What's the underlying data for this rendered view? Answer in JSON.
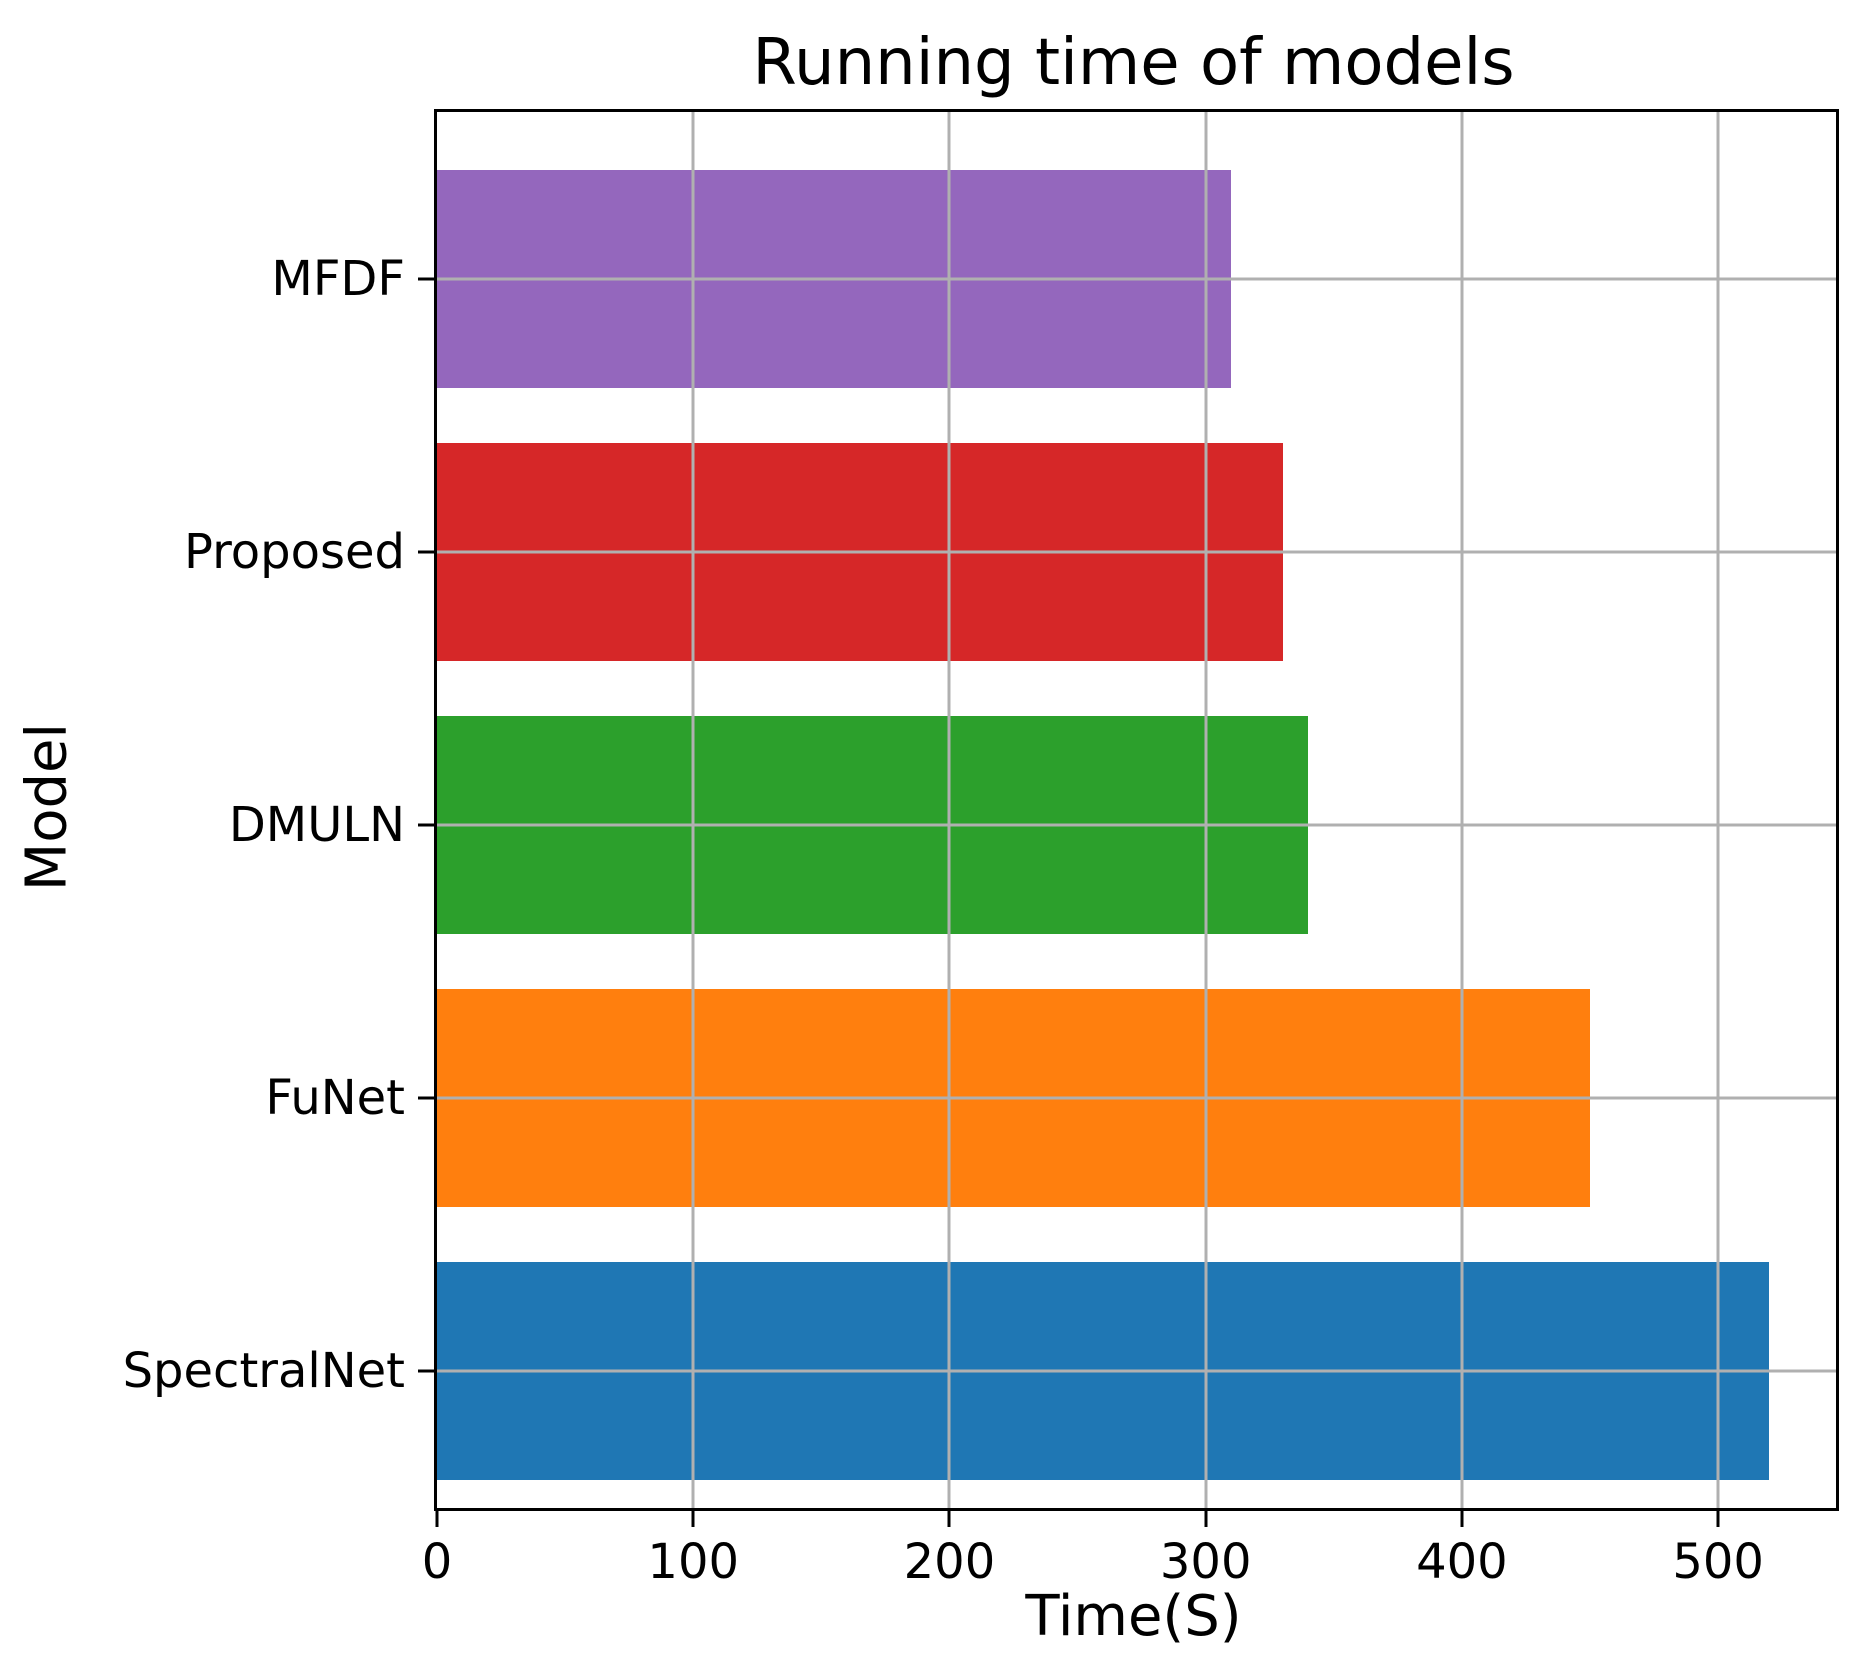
{
  "chart_data": {
    "type": "bar",
    "orientation": "horizontal",
    "title": "Running time of models",
    "xlabel": "Time(S)",
    "ylabel": "Model",
    "categories": [
      "MFDF",
      "Proposed",
      "DMULN",
      "FuNet",
      "SpectralNet"
    ],
    "values": [
      310,
      330,
      340,
      450,
      520
    ],
    "series": [
      {
        "name": "Running time",
        "values": [
          310,
          330,
          340,
          450,
          520
        ]
      }
    ],
    "bar_colors": [
      "#9467bd",
      "#d62728",
      "#2ca02c",
      "#ff7f0e",
      "#1f77b4"
    ],
    "x_ticks": [
      0,
      100,
      200,
      300,
      400,
      500
    ],
    "xlim": [
      0,
      546
    ],
    "grid": true,
    "grid_color": "#b0b0b0",
    "spine_color": "#000000",
    "background_color": "#ffffff",
    "legend": "none"
  }
}
